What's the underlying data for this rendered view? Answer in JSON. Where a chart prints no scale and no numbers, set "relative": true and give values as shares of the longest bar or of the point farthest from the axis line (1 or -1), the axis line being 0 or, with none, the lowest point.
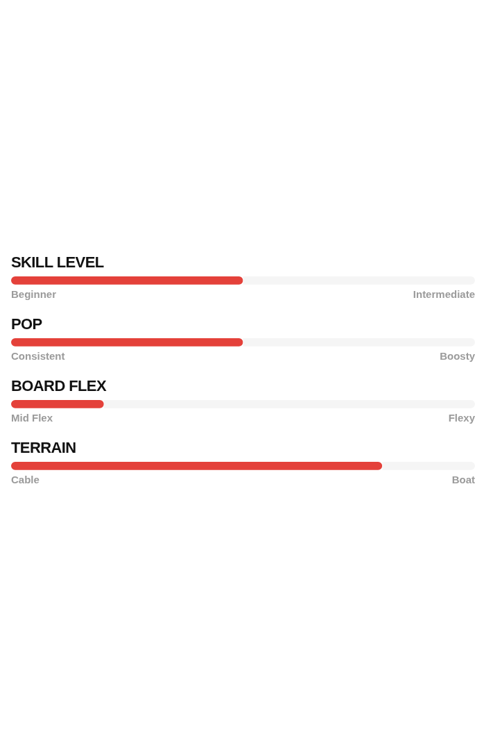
{
  "chart_data": [
    {
      "type": "bar",
      "title": "SKILL LEVEL",
      "orientation": "horizontal",
      "stacked": true,
      "relative": true,
      "categories": [
        null
      ],
      "series": [
        {
          "color": "#e4413a",
          "values": [
            0.5
          ]
        },
        {
          "color": "#f5f5f5",
          "values": [
            0.5
          ]
        }
      ],
      "annotations": [
        "Beginner",
        "Intermediate"
      ],
      "tick_labels": false
    },
    {
      "type": "bar",
      "title": "POP",
      "orientation": "horizontal",
      "stacked": true,
      "relative": true,
      "categories": [
        null
      ],
      "series": [
        {
          "color": "#e4413a",
          "values": [
            0.5
          ]
        },
        {
          "color": "#f5f5f5",
          "values": [
            0.5
          ]
        }
      ],
      "annotations": [
        "Consistent",
        "Boosty"
      ],
      "tick_labels": false
    },
    {
      "type": "bar",
      "title": "BOARD FLEX",
      "orientation": "horizontal",
      "stacked": true,
      "relative": true,
      "categories": [
        null
      ],
      "series": [
        {
          "color": "#e4413a",
          "values": [
            0.2
          ]
        },
        {
          "color": "#f5f5f5",
          "values": [
            0.8
          ]
        }
      ],
      "annotations": [
        "Mid Flex",
        "Flexy"
      ],
      "tick_labels": false
    },
    {
      "type": "bar",
      "title": "TERRAIN",
      "orientation": "horizontal",
      "stacked": true,
      "relative": true,
      "categories": [
        null
      ],
      "series": [
        {
          "color": "#e4413a",
          "values": [
            0.8
          ]
        },
        {
          "color": "#f5f5f5",
          "values": [
            0.2
          ]
        }
      ],
      "annotations": [
        "Cable",
        "Boat"
      ],
      "tick_labels": false
    }
  ]
}
